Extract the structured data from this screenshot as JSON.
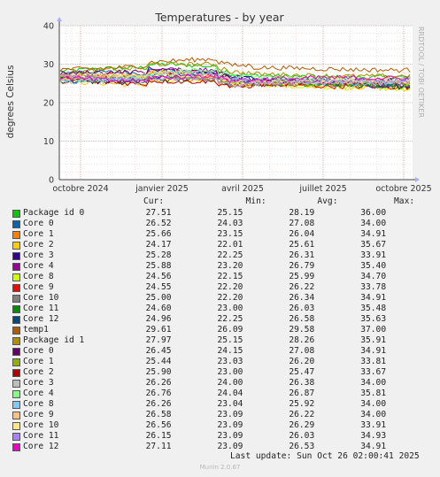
{
  "chart_data": {
    "type": "line",
    "title": "Temperatures - by year",
    "ylabel": "degrees Celsius",
    "xlabel": "",
    "ylim": [
      0,
      40
    ],
    "yticks": [
      0,
      10,
      20,
      30,
      40
    ],
    "xticks": [
      "octobre 2024",
      "janvier 2025",
      "avril 2025",
      "juillet 2025",
      "octobre 2025"
    ],
    "grid": true,
    "legend_columns": [
      "Cur:",
      "Min:",
      "Avg:",
      "Max:"
    ],
    "series": [
      {
        "name": "Package id 0",
        "color": "#00cc00",
        "cur": "27.51",
        "min": "25.15",
        "avg": "28.19",
        "max": "36.00"
      },
      {
        "name": "Core 0",
        "color": "#0066b3",
        "cur": "26.52",
        "min": "24.03",
        "avg": "27.08",
        "max": "34.00"
      },
      {
        "name": "Core 1",
        "color": "#ff8000",
        "cur": "25.66",
        "min": "23.15",
        "avg": "26.04",
        "max": "34.91"
      },
      {
        "name": "Core 2",
        "color": "#ffcc00",
        "cur": "24.17",
        "min": "22.01",
        "avg": "25.61",
        "max": "35.67"
      },
      {
        "name": "Core 3",
        "color": "#330099",
        "cur": "25.28",
        "min": "22.25",
        "avg": "26.31",
        "max": "33.91"
      },
      {
        "name": "Core 4",
        "color": "#990099",
        "cur": "25.88",
        "min": "23.20",
        "avg": "26.79",
        "max": "35.40"
      },
      {
        "name": "Core 8",
        "color": "#ccff00",
        "cur": "24.56",
        "min": "22.15",
        "avg": "25.99",
        "max": "34.70"
      },
      {
        "name": "Core 9",
        "color": "#ff0000",
        "cur": "24.55",
        "min": "22.20",
        "avg": "26.22",
        "max": "33.78"
      },
      {
        "name": "Core 10",
        "color": "#808080",
        "cur": "25.00",
        "min": "22.20",
        "avg": "26.34",
        "max": "34.91"
      },
      {
        "name": "Core 11",
        "color": "#008f00",
        "cur": "24.60",
        "min": "23.00",
        "avg": "26.03",
        "max": "35.48"
      },
      {
        "name": "Core 12",
        "color": "#00487d",
        "cur": "24.96",
        "min": "22.25",
        "avg": "26.58",
        "max": "35.63"
      },
      {
        "name": "temp1",
        "color": "#b35a00",
        "cur": "29.61",
        "min": "26.09",
        "avg": "29.58",
        "max": "37.00"
      },
      {
        "name": "Package id 1",
        "color": "#b38f00",
        "cur": "27.97",
        "min": "25.15",
        "avg": "28.26",
        "max": "35.91"
      },
      {
        "name": "Core 0",
        "color": "#6b006b",
        "cur": "26.45",
        "min": "24.15",
        "avg": "27.08",
        "max": "34.91"
      },
      {
        "name": "Core 1",
        "color": "#8fb300",
        "cur": "25.44",
        "min": "23.03",
        "avg": "26.20",
        "max": "33.81"
      },
      {
        "name": "Core 2",
        "color": "#b30000",
        "cur": "25.90",
        "min": "23.00",
        "avg": "25.47",
        "max": "33.67"
      },
      {
        "name": "Core 3",
        "color": "#bebebe",
        "cur": "26.26",
        "min": "24.00",
        "avg": "26.38",
        "max": "34.00"
      },
      {
        "name": "Core 4",
        "color": "#80ff80",
        "cur": "26.76",
        "min": "24.04",
        "avg": "26.87",
        "max": "35.81"
      },
      {
        "name": "Core 8",
        "color": "#80c9ff",
        "cur": "26.26",
        "min": "23.04",
        "avg": "25.92",
        "max": "34.00"
      },
      {
        "name": "Core 9",
        "color": "#ffc080",
        "cur": "26.58",
        "min": "23.09",
        "avg": "26.22",
        "max": "34.00"
      },
      {
        "name": "Core 10",
        "color": "#ffe680",
        "cur": "26.56",
        "min": "23.09",
        "avg": "26.29",
        "max": "33.91"
      },
      {
        "name": "Core 11",
        "color": "#aa80ff",
        "cur": "26.15",
        "min": "23.09",
        "avg": "26.03",
        "max": "34.93"
      },
      {
        "name": "Core 12",
        "color": "#ee00cc",
        "cur": "27.11",
        "min": "23.09",
        "avg": "26.53",
        "max": "34.91"
      }
    ]
  },
  "footer": {
    "last_update": "Last update: Sun Oct 26 02:00:41 2025",
    "rrd_credit": "RRDTOOL / TOBI OETIKER",
    "munin_version": "Munin 2.0.67"
  }
}
